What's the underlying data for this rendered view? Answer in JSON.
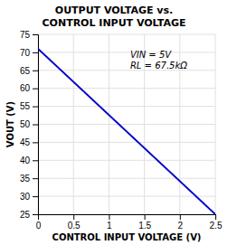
{
  "chart_data": {
    "type": "line",
    "title": "OUTPUT VOLTAGE vs.\nCONTROL INPUT VOLTAGE",
    "x_label": "CONTROL INPUT VOLTAGE (V)",
    "y_label": "VOUT (V)",
    "x": [
      0,
      2.5
    ],
    "series": [
      {
        "color": "#0000CC",
        "values": [
          71,
          25
        ]
      }
    ],
    "xlim": [
      0,
      2.5
    ],
    "ylim": [
      25,
      75
    ],
    "xticks": [
      0,
      0.5,
      1,
      1.5,
      2,
      2.5
    ],
    "yticks": [
      25,
      30,
      35,
      40,
      45,
      50,
      55,
      60,
      65,
      70,
      75
    ],
    "grid": true,
    "annotations": [
      {
        "text": "VIN = 5V",
        "x": 1.3,
        "y": 70.5
      },
      {
        "text": "RL = 67.5kΩ",
        "x": 1.3,
        "y": 67.5
      }
    ]
  }
}
